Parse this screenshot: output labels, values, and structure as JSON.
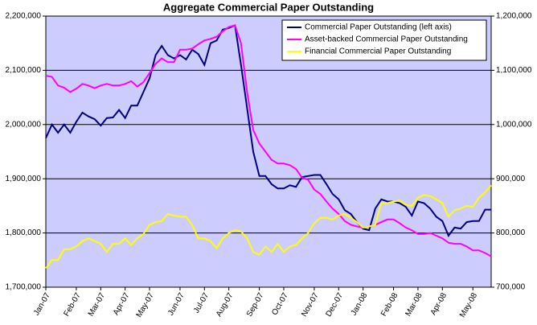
{
  "chart_data": {
    "type": "line",
    "title": "Aggregate Commercial Paper Outstanding",
    "categories": [
      "Jan-07",
      null,
      null,
      null,
      null,
      "Feb-07",
      null,
      null,
      null,
      "Mar-07",
      null,
      null,
      null,
      "Apr-07",
      null,
      null,
      null,
      "May-07",
      null,
      null,
      null,
      null,
      "Jun-07",
      null,
      null,
      null,
      "Jul-07",
      null,
      null,
      null,
      "Aug-07",
      null,
      null,
      null,
      null,
      "Sep-07",
      null,
      null,
      null,
      "Oct-07",
      null,
      null,
      null,
      null,
      "Nov-07",
      null,
      null,
      null,
      "Dec-07",
      null,
      null,
      null,
      "Jan-08",
      null,
      null,
      null,
      null,
      "Feb-08",
      null,
      null,
      null,
      "Mar-08",
      null,
      null,
      null,
      "Apr-08",
      null,
      null,
      null,
      null,
      "May-08",
      null,
      null,
      null
    ],
    "series": [
      {
        "name": "Commercial Paper Outstanding (left axis)",
        "color": "#000080",
        "axis": "y",
        "values": [
          1975000,
          2000000,
          1985000,
          2000000,
          1985000,
          2005000,
          2022000,
          2015000,
          2010000,
          1998000,
          2012000,
          2013000,
          2027000,
          2012000,
          2035000,
          2035000,
          2060000,
          2085000,
          2128000,
          2145000,
          2128000,
          2122000,
          2128000,
          2120000,
          2138000,
          2130000,
          2110000,
          2150000,
          2155000,
          2175000,
          2178000,
          2183000,
          2110000,
          2030000,
          1950000,
          1905000,
          1905000,
          1890000,
          1882000,
          1882000,
          1888000,
          1885000,
          1903000,
          1905000,
          1907000,
          1907000,
          1890000,
          1872000,
          1862000,
          1842000,
          1835000,
          1820000,
          1808000,
          1805000,
          1845000,
          1862000,
          1858000,
          1858000,
          1855000,
          1848000,
          1832000,
          1858000,
          1855000,
          1845000,
          1830000,
          1822000,
          1795000,
          1810000,
          1808000,
          1820000,
          1822000,
          1822000,
          1843000,
          1843000
        ]
      },
      {
        "name": "Asset-backed Commercial Paper Outstanding",
        "color": "#ff00ff",
        "axis": "y2",
        "values": [
          1090000,
          1088000,
          1072000,
          1068000,
          1060000,
          1066000,
          1075000,
          1072000,
          1067000,
          1072000,
          1075000,
          1072000,
          1072000,
          1075000,
          1080000,
          1070000,
          1078000,
          1095000,
          1112000,
          1122000,
          1115000,
          1115000,
          1138000,
          1138000,
          1140000,
          1148000,
          1155000,
          1158000,
          1162000,
          1172000,
          1180000,
          1183000,
          1150000,
          1060000,
          990000,
          965000,
          950000,
          935000,
          928000,
          928000,
          925000,
          918000,
          902000,
          898000,
          880000,
          872000,
          858000,
          845000,
          835000,
          822000,
          815000,
          812000,
          810000,
          812000,
          815000,
          820000,
          825000,
          825000,
          818000,
          810000,
          805000,
          798000,
          798000,
          800000,
          795000,
          790000,
          782000,
          780000,
          780000,
          775000,
          768000,
          768000,
          763000,
          757000
        ]
      },
      {
        "name": "Financial Commercial Paper Outstanding",
        "color": "#ffff00",
        "axis": "y2",
        "values": [
          735000,
          750000,
          750000,
          770000,
          770000,
          775000,
          785000,
          790000,
          785000,
          780000,
          765000,
          780000,
          780000,
          790000,
          778000,
          790000,
          798000,
          815000,
          820000,
          822000,
          835000,
          832000,
          830000,
          830000,
          815000,
          790000,
          790000,
          785000,
          772000,
          790000,
          800000,
          805000,
          803000,
          790000,
          765000,
          760000,
          775000,
          765000,
          780000,
          765000,
          775000,
          778000,
          790000,
          800000,
          818000,
          828000,
          828000,
          825000,
          832000,
          835000,
          828000,
          820000,
          810000,
          812000,
          815000,
          855000,
          855000,
          858000,
          860000,
          852000,
          850000,
          865000,
          870000,
          868000,
          862000,
          855000,
          830000,
          842000,
          845000,
          850000,
          848000,
          865000,
          875000,
          888000
        ]
      }
    ],
    "ylim": [
      1700000,
      2200000
    ],
    "yticks": [
      {
        "value": 1700000,
        "label": "1,700,000"
      },
      {
        "value": 1800000,
        "label": "1,800,000"
      },
      {
        "value": 1900000,
        "label": "1,900,000"
      },
      {
        "value": 2000000,
        "label": "2,000,000"
      },
      {
        "value": 2100000,
        "label": "2,100,000"
      },
      {
        "value": 2200000,
        "label": "2,200,000"
      }
    ],
    "y2lim": [
      700000,
      1200000
    ],
    "y2ticks": [
      {
        "value": 700000,
        "label": "700,000"
      },
      {
        "value": 800000,
        "label": "800,000"
      },
      {
        "value": 900000,
        "label": "900,000"
      },
      {
        "value": 1000000,
        "label": "1,000,000"
      },
      {
        "value": 1100000,
        "label": "1,100,000"
      },
      {
        "value": 1200000,
        "label": "1,200,000"
      }
    ],
    "grid": true,
    "legend": "upper right",
    "plot_background": "#ccccff"
  }
}
